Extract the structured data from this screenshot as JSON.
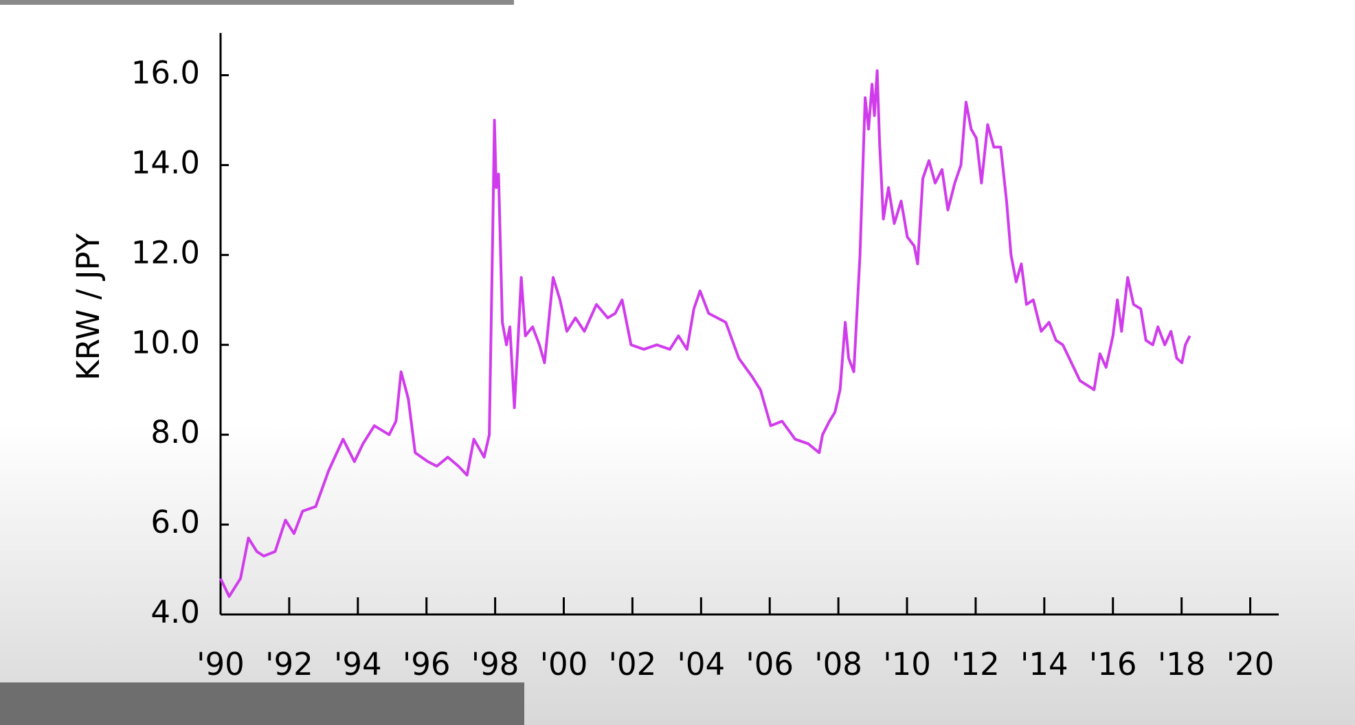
{
  "chart_data": {
    "type": "line",
    "y_label": "KRW / JPY",
    "color": "#d03ceb",
    "x": [
      1990.0,
      1990.25,
      1990.58,
      1990.81,
      1991.06,
      1991.26,
      1991.59,
      1991.89,
      1992.14,
      1992.39,
      1992.77,
      1993.15,
      1993.57,
      1993.9,
      1994.15,
      1994.48,
      1994.91,
      1995.11,
      1995.26,
      1995.47,
      1995.67,
      1996.04,
      1996.3,
      1996.62,
      1996.93,
      1997.18,
      1997.38,
      1997.68,
      1997.83,
      1997.93,
      1997.98,
      1998.03,
      1998.1,
      1998.21,
      1998.33,
      1998.43,
      1998.56,
      1998.66,
      1998.76,
      1998.88,
      1999.09,
      1999.29,
      1999.44,
      1999.69,
      1999.89,
      2000.09,
      2000.34,
      2000.6,
      2000.95,
      2001.28,
      2001.5,
      2001.7,
      2001.96,
      2002.33,
      2002.71,
      2003.09,
      2003.34,
      2003.59,
      2003.79,
      2003.97,
      2004.22,
      2004.72,
      2005.1,
      2005.48,
      2005.73,
      2006.03,
      2006.36,
      2006.74,
      2007.12,
      2007.44,
      2007.54,
      2007.74,
      2007.9,
      2008.05,
      2008.2,
      2008.3,
      2008.45,
      2008.63,
      2008.78,
      2008.88,
      2008.98,
      2009.05,
      2009.13,
      2009.2,
      2009.31,
      2009.46,
      2009.63,
      2009.83,
      2010.01,
      2010.21,
      2010.31,
      2010.46,
      2010.64,
      2010.82,
      2011.02,
      2011.19,
      2011.39,
      2011.57,
      2011.72,
      2011.87,
      2012.02,
      2012.17,
      2012.35,
      2012.53,
      2012.73,
      2012.9,
      2013.03,
      2013.18,
      2013.33,
      2013.48,
      2013.68,
      2013.91,
      2014.14,
      2014.34,
      2014.54,
      2014.79,
      2015.04,
      2015.25,
      2015.45,
      2015.62,
      2015.8,
      2016.0,
      2016.13,
      2016.25,
      2016.43,
      2016.6,
      2016.81,
      2016.96,
      2017.16,
      2017.31,
      2017.51,
      2017.69,
      2017.86,
      2018.01,
      2018.11,
      2018.24
    ],
    "values": [
      4.8,
      4.4,
      4.8,
      5.7,
      5.4,
      5.3,
      5.4,
      6.1,
      5.8,
      6.3,
      6.4,
      7.2,
      7.9,
      7.4,
      7.8,
      8.2,
      8.0,
      8.3,
      9.4,
      8.8,
      7.6,
      7.4,
      7.3,
      7.5,
      7.3,
      7.1,
      7.9,
      7.5,
      8.0,
      12.5,
      15.0,
      13.5,
      13.8,
      10.5,
      10.0,
      10.4,
      8.6,
      10.0,
      11.5,
      10.2,
      10.4,
      10.0,
      9.6,
      11.5,
      11.0,
      10.3,
      10.6,
      10.3,
      10.9,
      10.6,
      10.7,
      11.0,
      10.0,
      9.9,
      10.0,
      9.9,
      10.2,
      9.9,
      10.8,
      11.2,
      10.7,
      10.5,
      9.7,
      9.3,
      9.0,
      8.2,
      8.3,
      7.9,
      7.8,
      7.6,
      8.0,
      8.3,
      8.5,
      9.0,
      10.5,
      9.7,
      9.4,
      12.0,
      15.5,
      14.8,
      15.8,
      15.1,
      16.1,
      14.5,
      12.8,
      13.5,
      12.7,
      13.2,
      12.4,
      12.2,
      11.8,
      13.7,
      14.1,
      13.6,
      13.9,
      13.0,
      13.6,
      14.0,
      15.4,
      14.8,
      14.6,
      13.6,
      14.9,
      14.4,
      14.4,
      13.2,
      12.0,
      11.4,
      11.8,
      10.9,
      11.0,
      10.3,
      10.5,
      10.1,
      10.0,
      9.6,
      9.2,
      9.1,
      9.0,
      9.8,
      9.5,
      10.2,
      11.0,
      10.3,
      11.5,
      10.9,
      10.8,
      10.1,
      10.0,
      10.4,
      10.0,
      10.3,
      9.7,
      9.6,
      10.0,
      10.2
    ],
    "xlim": [
      1990,
      2020.83
    ],
    "ylim": [
      4,
      16.94
    ],
    "xticks": [
      {
        "value": 1990,
        "label": "'90"
      },
      {
        "value": 1992,
        "label": "'92"
      },
      {
        "value": 1994,
        "label": "'94"
      },
      {
        "value": 1996,
        "label": "'96"
      },
      {
        "value": 1998,
        "label": "'98"
      },
      {
        "value": 2000,
        "label": "'00"
      },
      {
        "value": 2002,
        "label": "'02"
      },
      {
        "value": 2004,
        "label": "'04"
      },
      {
        "value": 2006,
        "label": "'06"
      },
      {
        "value": 2008,
        "label": "'08"
      },
      {
        "value": 2010,
        "label": "'10"
      },
      {
        "value": 2012,
        "label": "'12"
      },
      {
        "value": 2014,
        "label": "'14"
      },
      {
        "value": 2016,
        "label": "'16"
      },
      {
        "value": 2018,
        "label": "'18"
      },
      {
        "value": 2020,
        "label": "'20"
      }
    ],
    "yticks": [
      {
        "value": 4,
        "label": "4.0"
      },
      {
        "value": 6,
        "label": "6.0"
      },
      {
        "value": 8,
        "label": "8.0"
      },
      {
        "value": 10,
        "label": "10.0"
      },
      {
        "value": 12,
        "label": "12.0"
      },
      {
        "value": 14,
        "label": "14.0"
      },
      {
        "value": 16,
        "label": "16.0"
      }
    ],
    "grid": false
  }
}
